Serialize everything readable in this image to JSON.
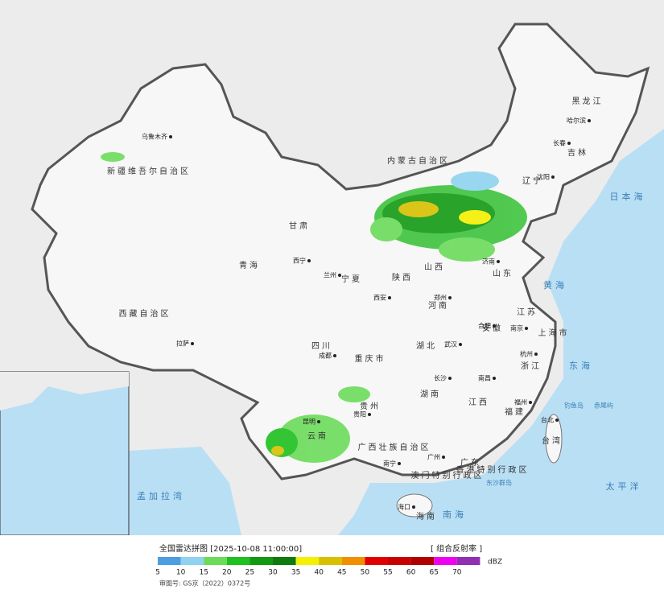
{
  "header": {
    "title": "全国雷达拼图 [2025-10-08 11:00:00]",
    "product": "[ 组合反射率 ]",
    "approval": "审图号: GS京（2022）0372号"
  },
  "legend": {
    "unit": "dBZ",
    "values": [
      5,
      10,
      15,
      20,
      25,
      30,
      35,
      40,
      45,
      50,
      55,
      60,
      65,
      70
    ],
    "colors": [
      "#4d9ee0",
      "#8fd3f0",
      "#6cdb5a",
      "#1fc01f",
      "#139a13",
      "#0f7a0f",
      "#f4f000",
      "#d8c000",
      "#f09000",
      "#e00000",
      "#c80000",
      "#b00000",
      "#f000f0",
      "#9030b0"
    ]
  },
  "map": {
    "provinces": [
      "黑龙江",
      "吉林",
      "辽宁",
      "内蒙古自治区",
      "新疆维吾尔自治区",
      "西藏自治区",
      "青海",
      "甘肃",
      "宁夏",
      "陕西",
      "山西",
      "山东",
      "河南",
      "江苏",
      "安徽",
      "上海市",
      "浙江",
      "湖北",
      "四川",
      "重庆市",
      "贵州",
      "云南",
      "湖南",
      "江西",
      "福建",
      "广东",
      "广西壮族自治区",
      "海南",
      "台湾",
      "香港特别行政区",
      "澳门特别行政区"
    ],
    "cities": [
      "乌鲁木齐",
      "哈尔滨",
      "长春",
      "沈阳",
      "西宁",
      "兰州",
      "西安",
      "郑州",
      "济南",
      "合肥",
      "南京",
      "武汉",
      "成都",
      "长沙",
      "南昌",
      "杭州",
      "福州",
      "贵阳",
      "昆明",
      "南宁",
      "广州",
      "拉萨",
      "海口",
      "台北"
    ],
    "seas": [
      "黄海",
      "东海",
      "日本海",
      "太平洋",
      "南海",
      "孟加拉湾",
      "钓鱼岛",
      "赤尾屿",
      "东沙群岛"
    ]
  }
}
